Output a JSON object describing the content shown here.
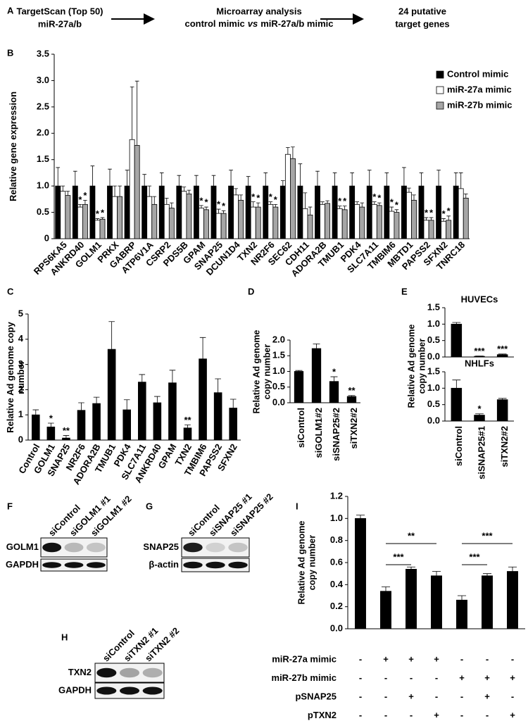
{
  "panel_labels": [
    "A",
    "B",
    "C",
    "D",
    "E",
    "F",
    "G",
    "H",
    "I"
  ],
  "flow": [
    {
      "line1": "TargetScan (Top 50)",
      "line2": "miR-27a/b"
    },
    {
      "line1": "Microarray analysis",
      "line2": [
        "control mimic",
        "vs",
        "miR-27a/b mimic"
      ]
    },
    {
      "line1": "24 putative",
      "line2": "target genes"
    }
  ],
  "chart_data": [
    {
      "type": "bar",
      "ylabel": "Relative gene expression",
      "categories": [
        "RPS6KA5",
        "ANKRD40",
        "GOLM1",
        "PRKX",
        "GABRP",
        "ATP6V1A",
        "CSRP2",
        "PDS5B",
        "GPAM",
        "SNAP25",
        "DCUN1D4",
        "TXN2",
        "NR2F6",
        "SEC62",
        "CDH11",
        "ADORA2B",
        "TMUB1",
        "PDK4",
        "SLC7A11",
        "TMBIM6",
        "MBTD1",
        "PAPSS2",
        "SFXN2",
        "TNRC18"
      ],
      "ylim": [
        0,
        3.5
      ],
      "yticks": [
        0,
        0.5,
        {
          "value": 1,
          "label": "1.0"
        },
        1.5,
        {
          "value": 2,
          "label": "2.0"
        },
        2.5,
        {
          "value": 3,
          "label": "3.0"
        },
        3.5
      ],
      "legend": "upper right",
      "series": [
        {
          "name": "Control mimic",
          "color": "#000000",
          "values": [
            1,
            1,
            1,
            1,
            1,
            1,
            1,
            1,
            1,
            1,
            1,
            1,
            1,
            1,
            1,
            1,
            1,
            1,
            1,
            1,
            1,
            1,
            1,
            1
          ],
          "errors": [
            0.35,
            0.28,
            0.38,
            0.32,
            0.3,
            0.22,
            0.25,
            0.2,
            0.2,
            0.2,
            0.3,
            0.18,
            0.25,
            0.1,
            0.42,
            0.28,
            0.25,
            0.25,
            0.3,
            0.25,
            0.35,
            0.25,
            0.3,
            0.25
          ]
        },
        {
          "name": "miR-27a mimic",
          "color": "#ffffff",
          "values": [
            0.9,
            0.6,
            0.35,
            0.8,
            1.88,
            0.8,
            0.65,
            0.9,
            0.58,
            0.48,
            0.83,
            0.6,
            0.65,
            1.6,
            0.57,
            0.65,
            0.57,
            0.65,
            0.65,
            0.52,
            0.88,
            0.35,
            0.33,
            0.95
          ],
          "errors": [
            0.1,
            0.05,
            0.03,
            0.2,
            1.0,
            0.2,
            0.12,
            0.08,
            0.05,
            0.08,
            0.12,
            0.1,
            0.05,
            0.13,
            0.3,
            0.05,
            0.05,
            0.05,
            0.05,
            0.08,
            0.08,
            0.05,
            0.05,
            0.3
          ],
          "stars": [
            null,
            "*",
            "*",
            null,
            null,
            null,
            null,
            null,
            "*",
            "*",
            null,
            "*",
            "*",
            null,
            null,
            null,
            "*",
            null,
            "*",
            "*",
            null,
            "*",
            "*",
            null
          ]
        },
        {
          "name": "miR-27b mimic",
          "color": "#a6a6a6",
          "values": [
            0.82,
            0.65,
            0.37,
            0.8,
            1.77,
            0.65,
            0.58,
            0.85,
            0.55,
            0.48,
            0.73,
            0.6,
            0.6,
            1.52,
            0.45,
            0.67,
            0.55,
            0.6,
            0.63,
            0.5,
            0.73,
            0.35,
            0.35,
            0.77
          ],
          "errors": [
            0.08,
            0.08,
            0.03,
            0.2,
            1.22,
            0.15,
            0.1,
            0.07,
            0.05,
            0.05,
            0.1,
            0.08,
            0.05,
            0.22,
            0.15,
            0.05,
            0.07,
            0.08,
            0.05,
            0.05,
            0.1,
            0.05,
            0.08,
            0.08
          ],
          "stars": [
            null,
            "*",
            "*",
            null,
            null,
            null,
            null,
            null,
            "*",
            "*",
            null,
            "*",
            "*",
            null,
            null,
            null,
            "*",
            null,
            "*",
            "*",
            null,
            "*",
            "*",
            null
          ]
        }
      ]
    },
    {
      "type": "bar",
      "ylabel": "Relative Ad genome copy number",
      "color": "#000000",
      "categories": [
        "Control",
        "GOLM1",
        "SNAP25",
        "NR2F6",
        "ADORA2B",
        "TMUB1",
        "PDK4",
        "SLC7A11",
        "ANKRD40",
        "GPAM",
        "TXN2",
        "TMBIM6",
        "PAPSS2",
        "SFXN2"
      ],
      "values": [
        1,
        0.52,
        0.08,
        1.18,
        1.45,
        3.6,
        1.2,
        2.3,
        1.48,
        2.27,
        0.48,
        3.22,
        1.88,
        1.27
      ],
      "errors": [
        0.2,
        0.15,
        0.1,
        0.3,
        0.25,
        1.1,
        0.4,
        0.3,
        0.25,
        0.5,
        0.12,
        0.85,
        0.55,
        0.35
      ],
      "stars": [
        null,
        "*",
        "**",
        null,
        null,
        null,
        null,
        null,
        null,
        null,
        "**",
        null,
        null,
        null
      ],
      "ylim": [
        0,
        5
      ],
      "yticks": [
        0,
        1,
        2,
        3,
        4,
        5
      ]
    },
    {
      "type": "bar",
      "ylabel": "Relative Ad genome copy number",
      "color": "#000000",
      "categories": [
        "siControl",
        "siGOLM1#2",
        "siSNAP25#2",
        "siTXN2#2"
      ],
      "values": [
        1.0,
        1.73,
        0.68,
        0.2
      ],
      "errors": [
        0.03,
        0.15,
        0.15,
        0.03
      ],
      "stars": [
        null,
        null,
        "*",
        "**"
      ],
      "ylim": [
        0,
        2
      ],
      "yticks": [
        {
          "value": 0,
          "label": "0.0"
        },
        0.5,
        {
          "value": 1,
          "label": "1.0"
        },
        1.5,
        {
          "value": 2,
          "label": "2.0"
        }
      ]
    },
    {
      "type": "bar",
      "title": "HUVECs",
      "ylabel": "Relative Ad genome copy number",
      "color": "#000000",
      "values": [
        1.0,
        0.02,
        0.07
      ],
      "errors": [
        0.05,
        0.01,
        0.02
      ],
      "stars": [
        null,
        "***",
        "***"
      ],
      "ylim": [
        0,
        1.5
      ],
      "yticks": [
        {
          "value": 0,
          "label": "0.0"
        },
        0.5,
        {
          "value": 1,
          "label": "1.0"
        },
        1.5
      ]
    },
    {
      "type": "bar",
      "title": "NHLFs",
      "color": "#000000",
      "categories": [
        "siControl",
        "siSNAP25#1",
        "siTXN2#2"
      ],
      "values": [
        1.0,
        0.18,
        0.65
      ],
      "errors": [
        0.25,
        0.04,
        0.04
      ],
      "stars": [
        null,
        "*",
        null
      ],
      "ylim": [
        0,
        1.5
      ],
      "yticks": [
        {
          "value": 0,
          "label": "0.0"
        },
        0.5,
        {
          "value": 1,
          "label": "1.0"
        },
        1.5
      ]
    },
    {
      "type": "bar",
      "ylabel": "Relative Ad genome copy number",
      "color": "#000000",
      "values": [
        1.0,
        0.34,
        0.54,
        0.48,
        0.26,
        0.48,
        0.52
      ],
      "errors": [
        0.03,
        0.04,
        0.02,
        0.04,
        0.04,
        0.02,
        0.04
      ],
      "ylim": [
        0,
        1.2
      ],
      "yticks": [
        {
          "value": 0,
          "label": "0.0"
        },
        0.2,
        0.4,
        0.6,
        0.8,
        {
          "value": 1,
          "label": "1.0"
        },
        1.2
      ],
      "brackets": [
        "***",
        "**",
        "***",
        "***"
      ],
      "conditions": [
        {
          "name": "miR-27a mimic",
          "values": [
            "-",
            "+",
            "+",
            "+",
            "-",
            "-",
            "-"
          ]
        },
        {
          "name": "miR-27b mimic",
          "values": [
            "-",
            "-",
            "-",
            "-",
            "+",
            "+",
            "+"
          ]
        },
        {
          "name": "pSNAP25",
          "values": [
            "-",
            "-",
            "+",
            "-",
            "-",
            "+",
            "-"
          ]
        },
        {
          "name": "pTXN2",
          "values": [
            "-",
            "-",
            "-",
            "+",
            "-",
            "-",
            "+"
          ]
        }
      ]
    }
  ],
  "blots": [
    {
      "lanes": [
        "siControl",
        "siGOLM1 #1",
        "siGOLM1 #2"
      ],
      "rows": [
        "GOLM1",
        "GAPDH"
      ]
    },
    {
      "lanes": [
        "siControl",
        "siSNAP25 #1",
        "siSNAP25 #2"
      ],
      "rows": [
        "SNAP25",
        "β-actin"
      ]
    },
    {
      "lanes": [
        "siControl",
        "siTXN2 #1",
        "siTXN2 #2"
      ],
      "rows": [
        "TXN2",
        "GAPDH"
      ]
    }
  ]
}
